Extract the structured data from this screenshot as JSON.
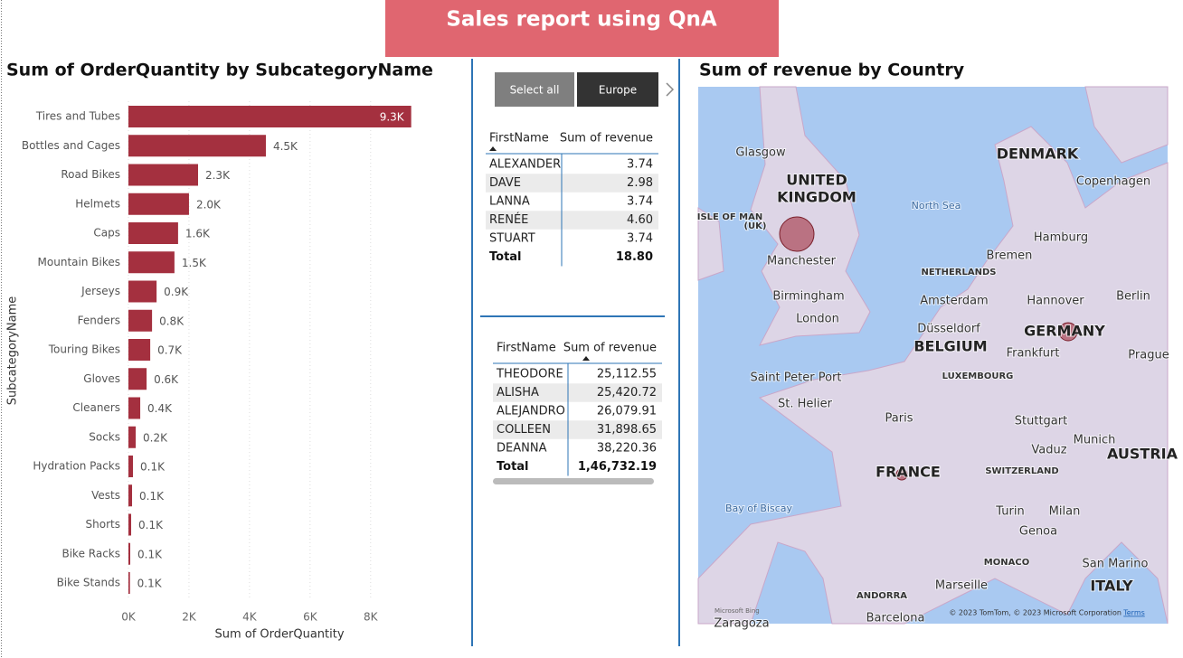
{
  "header": {
    "title": "Sales report using QnA"
  },
  "chart_data": {
    "type": "hbar",
    "title": "Sum of OrderQuantity by SubcategoryName",
    "x_label": "Sum of OrderQuantity",
    "y_label": "SubcategoryName",
    "categories": [
      "Tires and Tubes",
      "Bottles and Cages",
      "Road Bikes",
      "Helmets",
      "Caps",
      "Mountain Bikes",
      "Jerseys",
      "Fenders",
      "Touring Bikes",
      "Gloves",
      "Cleaners",
      "Socks",
      "Hydration Packs",
      "Vests",
      "Shorts",
      "Bike Racks",
      "Bike Stands"
    ],
    "values": [
      9340,
      4540,
      2300,
      2000,
      1640,
      1520,
      930,
      780,
      720,
      600,
      390,
      240,
      150,
      120,
      90,
      60,
      50
    ],
    "value_labels": [
      "9.3K",
      "4.5K",
      "2.3K",
      "2.0K",
      "1.6K",
      "1.5K",
      "0.9K",
      "0.8K",
      "0.7K",
      "0.6K",
      "0.4K",
      "0.2K",
      "0.1K",
      "0.1K",
      "0.1K",
      "0.1K",
      "0.1K"
    ],
    "color": "#a4303f",
    "xlim": [
      0,
      9500
    ],
    "xticks": [
      {
        "value": 0,
        "label": "0K"
      },
      {
        "value": 2000,
        "label": "2K"
      },
      {
        "value": 4000,
        "label": "4K"
      },
      {
        "value": 6000,
        "label": "6K"
      },
      {
        "value": 8000,
        "label": "8K"
      }
    ],
    "grid": true
  },
  "slicer": {
    "buttons": [
      "Select all",
      "Europe"
    ]
  },
  "tables": [
    {
      "columns": [
        "FirstName",
        "Sum of revenue"
      ],
      "rows": [
        [
          "ALEXANDER",
          "3.74"
        ],
        [
          "DAVE",
          "2.98"
        ],
        [
          "LANNA",
          "3.74"
        ],
        [
          "RENÉE",
          "4.60"
        ],
        [
          "STUART",
          "3.74"
        ]
      ],
      "total": [
        "Total",
        "18.80"
      ]
    },
    {
      "columns": [
        "FirstName",
        "Sum of revenue"
      ],
      "rows": [
        [
          "THEODORE",
          "25,112.55"
        ],
        [
          "ALISHA",
          "25,420.72"
        ],
        [
          "ALEJANDRO",
          "26,079.91"
        ],
        [
          "COLLEEN",
          "31,898.65"
        ],
        [
          "DEANNA",
          "38,220.36"
        ]
      ],
      "total": [
        "Total",
        "1,46,732.19"
      ]
    }
  ],
  "map": {
    "title": "Sum of revenue by Country",
    "labels": [
      "Glasgow",
      "UNITED",
      "KINGDOM",
      "ISLE OF MAN",
      "(UK)",
      "DENMARK",
      "Copenhagen",
      "North Sea",
      "Hamburg",
      "Bremen",
      "Manchester",
      "NETHERLANDS",
      "Berlin",
      "Birmingham",
      "Amsterdam",
      "Hannover",
      "London",
      "Düsseldorf",
      "GERMANY",
      "BELGIUM",
      "Frankfurt",
      "LUXEMBOURG",
      "Prague",
      "Saint Peter Port",
      "St. Helier",
      "Paris",
      "Stuttgart",
      "Munich",
      "Vaduz",
      "AUSTRIA",
      "FRANCE",
      "SWITZERLAND",
      "Bay of Biscay",
      "Turin",
      "Milan",
      "Genoa",
      "MONACO",
      "San Marino",
      "Marseille",
      "ANDORRA",
      "ITALY",
      "Zaragoza",
      "Barcelona"
    ],
    "attribution": "© 2023 TomTom, © 2023 Microsoft Corporation",
    "terms": "Terms",
    "logo": "Microsoft Bing"
  }
}
